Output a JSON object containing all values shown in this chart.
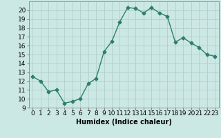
{
  "x": [
    0,
    1,
    2,
    3,
    4,
    5,
    6,
    7,
    8,
    9,
    10,
    11,
    12,
    13,
    14,
    15,
    16,
    17,
    18,
    19,
    20,
    21,
    22,
    23
  ],
  "y": [
    12.5,
    12.0,
    10.8,
    11.0,
    9.5,
    9.7,
    10.0,
    11.7,
    12.3,
    15.3,
    16.5,
    18.7,
    20.3,
    20.2,
    19.7,
    20.3,
    19.7,
    19.3,
    16.4,
    16.9,
    16.3,
    15.8,
    15.0,
    14.8
  ],
  "line_color": "#2e7d6e",
  "marker": "D",
  "markersize": 2.5,
  "linewidth": 1.0,
  "bg_color": "#cce8e4",
  "grid_major_color": "#b0d0cc",
  "grid_minor_color": "#c8e4e0",
  "xlabel": "Humidex (Indice chaleur)",
  "xlim": [
    -0.5,
    23.5
  ],
  "ylim": [
    9,
    21
  ],
  "yticks": [
    9,
    10,
    11,
    12,
    13,
    14,
    15,
    16,
    17,
    18,
    19,
    20
  ],
  "xticks": [
    0,
    1,
    2,
    3,
    4,
    5,
    6,
    7,
    8,
    9,
    10,
    11,
    12,
    13,
    14,
    15,
    16,
    17,
    18,
    19,
    20,
    21,
    22,
    23
  ],
  "label_fontsize": 7,
  "tick_fontsize": 6.5
}
